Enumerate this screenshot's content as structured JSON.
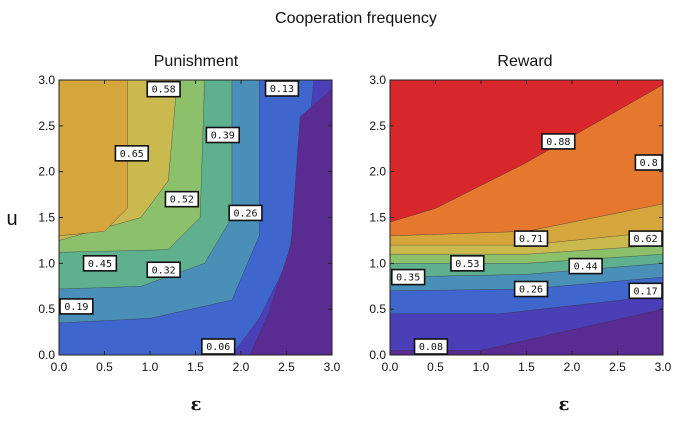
{
  "title": "Cooperation frequency",
  "colors": [
    "#5a2b91",
    "#4b3fb8",
    "#3e66cd",
    "#4a8fb7",
    "#5fb08f",
    "#8cc06b",
    "#c9b94e",
    "#d4a63c",
    "#e08a35",
    "#e5782e",
    "#d8272a"
  ],
  "chart_data": [
    {
      "type": "contour",
      "title": "Punishment",
      "xlabel": "ε",
      "ylabel": "u",
      "xlim": [
        0,
        3
      ],
      "ylim": [
        0,
        3
      ],
      "xticks": [
        "0.0",
        "0.5",
        "1.0",
        "1.5",
        "2.0",
        "2.5",
        "3.0"
      ],
      "yticks": [
        "0.0",
        "0.5",
        "1.0",
        "1.5",
        "2.0",
        "2.5",
        "3.0"
      ],
      "contour_labels": [
        {
          "text": "0.58",
          "x": 1.15,
          "y": 2.9
        },
        {
          "text": "0.13",
          "x": 2.45,
          "y": 2.98
        },
        {
          "text": "0.65",
          "x": 0.8,
          "y": 2.2
        },
        {
          "text": "0.39",
          "x": 1.8,
          "y": 2.4
        },
        {
          "text": "0.52",
          "x": 1.35,
          "y": 1.7
        },
        {
          "text": "0.26",
          "x": 2.05,
          "y": 1.55
        },
        {
          "text": "0.45",
          "x": 0.45,
          "y": 1.0
        },
        {
          "text": "0.32",
          "x": 1.15,
          "y": 0.93
        },
        {
          "text": "0.19",
          "x": 0.1,
          "y": 0.53
        },
        {
          "text": "0.06",
          "x": 1.75,
          "y": 0.07
        }
      ]
    },
    {
      "type": "contour",
      "title": "Reward",
      "xlabel": "ε",
      "ylabel": "",
      "xlim": [
        0,
        3
      ],
      "ylim": [
        0,
        3
      ],
      "xticks": [
        "0.0",
        "0.5",
        "1.0",
        "1.5",
        "2.0",
        "2.5",
        "3.0"
      ],
      "yticks": [
        "0.0",
        "0.5",
        "1.0",
        "1.5",
        "2.0",
        "2.5",
        "3.0"
      ],
      "contour_labels": [
        {
          "text": "0.88",
          "x": 1.85,
          "y": 2.33
        },
        {
          "text": "0.8",
          "x": 2.9,
          "y": 2.1
        },
        {
          "text": "0.71",
          "x": 1.55,
          "y": 1.27
        },
        {
          "text": "0.62",
          "x": 2.9,
          "y": 1.27
        },
        {
          "text": "0.35",
          "x": 0.2,
          "y": 0.85
        },
        {
          "text": "0.53",
          "x": 0.85,
          "y": 1.0
        },
        {
          "text": "0.44",
          "x": 2.15,
          "y": 0.97
        },
        {
          "text": "0.26",
          "x": 1.55,
          "y": 0.72
        },
        {
          "text": "0.17",
          "x": 2.9,
          "y": 0.7
        },
        {
          "text": "0.08",
          "x": 0.45,
          "y": 0.02
        }
      ]
    }
  ]
}
